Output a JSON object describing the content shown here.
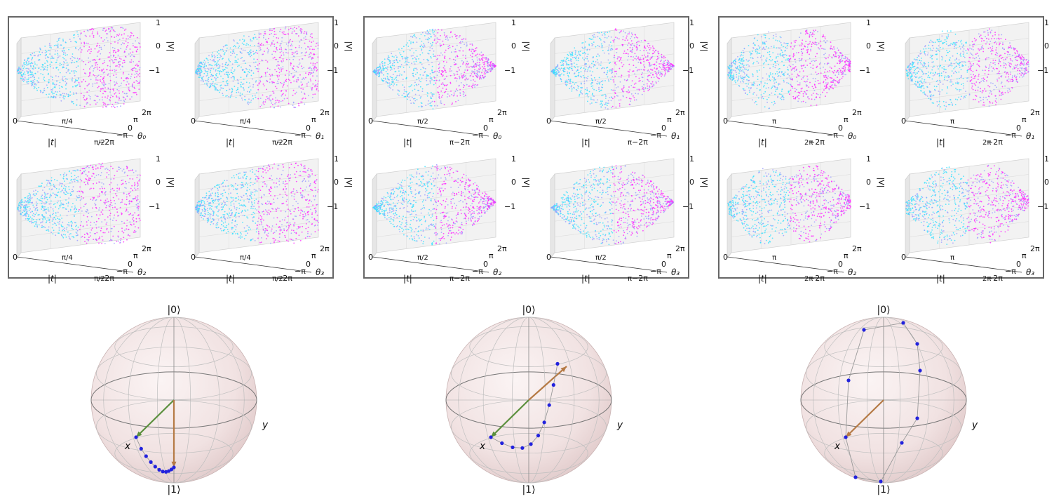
{
  "labels": {
    "z_axis": "|V|",
    "x_axis": "|t|",
    "theta_axes": [
      "θ₀",
      "θ₁",
      "θ₂",
      "θ₃"
    ],
    "ket0": "|0⟩",
    "ket1": "|1⟩",
    "bloch_x": "x",
    "bloch_y": "y"
  },
  "chart_data": [
    {
      "type": "scatter",
      "panel": "left",
      "description": "3D point clouds of |V| vs |t| and θ_i",
      "z_ticks": [
        "1",
        "0",
        "−1"
      ],
      "t_ticks": [
        "0",
        "π/4",
        "π/2"
      ],
      "theta_ticks": [
        "2π",
        "π",
        "0",
        "−π",
        "−2π"
      ],
      "zlim": [
        -1,
        1
      ],
      "tlim": [
        0,
        1.5708
      ],
      "shape": "lens"
    },
    {
      "type": "scatter",
      "panel": "middle",
      "z_ticks": [
        "1",
        "0",
        "−1"
      ],
      "t_ticks": [
        "0",
        "π/2",
        "π"
      ],
      "theta_ticks": [
        "2π",
        "π",
        "0",
        "−π",
        "−2π"
      ],
      "zlim": [
        -1,
        1
      ],
      "tlim": [
        0,
        3.1416
      ],
      "shape": "lens"
    },
    {
      "type": "scatter",
      "panel": "right",
      "z_ticks": [
        "1",
        "0",
        "−1"
      ],
      "t_ticks": [
        "0",
        "π",
        "2π"
      ],
      "theta_ticks": [
        "2π",
        "π",
        "0",
        "−π",
        "−2π"
      ],
      "zlim": [
        -1,
        1
      ],
      "tlim": [
        0,
        6.2832
      ],
      "shape": "double"
    },
    {
      "type": "bloch",
      "trajectory_points": 11,
      "arrows": [
        {
          "color": "#5a8f3c",
          "to": "x"
        },
        {
          "color": "#b57a45",
          "to": "|1⟩"
        }
      ]
    },
    {
      "type": "bloch",
      "trajectory_points": 10,
      "arrows": [
        {
          "color": "#5a8f3c",
          "to": "x"
        },
        {
          "color": "#b57a45",
          "to": "upper-right"
        }
      ]
    },
    {
      "type": "bloch",
      "trajectory_points": 10,
      "arrows": [
        {
          "color": "#b57a45",
          "to": "x"
        }
      ]
    }
  ],
  "colors": {
    "cyan": "#33e0ff",
    "magenta": "#ff22ff",
    "frame": "#666666",
    "green": "#5a8f3c",
    "orange": "#b57a45",
    "dot": "#2222dd"
  }
}
